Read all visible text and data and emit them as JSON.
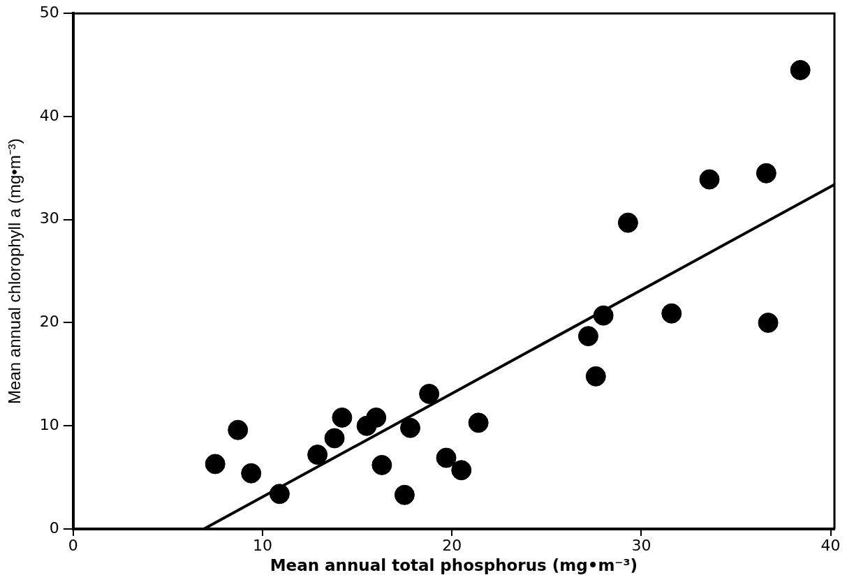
{
  "chart_data": {
    "type": "scatter",
    "xlabel": "Mean annual total phosphorus (mg•m⁻³)",
    "ylabel": "Mean annual chlorophyll a (mg•m⁻³)",
    "xlim": [
      0,
      40.2
    ],
    "xticks": [
      0,
      10,
      20,
      30,
      40
    ],
    "ylim": [
      0,
      50
    ],
    "yticks": [
      0,
      10,
      20,
      30,
      40,
      50
    ],
    "grid": false,
    "legend": false,
    "marker": "circle",
    "series": [
      {
        "color": "#000000",
        "x": [
          7.5,
          8.7,
          9.4,
          10.9,
          12.9,
          13.8,
          14.2,
          15.5,
          16.0,
          16.3,
          17.5,
          17.8,
          18.8,
          19.7,
          20.5,
          21.4,
          27.2,
          27.6,
          28.0,
          29.3,
          31.6,
          33.6,
          36.6,
          36.7,
          38.4
        ],
        "values": [
          6.3,
          9.6,
          5.4,
          3.4,
          7.2,
          8.8,
          10.8,
          10.0,
          10.8,
          6.2,
          3.3,
          9.8,
          13.1,
          6.9,
          5.7,
          10.3,
          18.7,
          14.8,
          20.7,
          29.7,
          20.9,
          33.9,
          34.5,
          20.0,
          44.5
        ]
      },
      {
        "type": "line",
        "color": "#000000",
        "x": [
          6.9,
          40.2
        ],
        "values": [
          0,
          33.4
        ],
        "marker": "none",
        "line_style": "solid"
      }
    ]
  }
}
